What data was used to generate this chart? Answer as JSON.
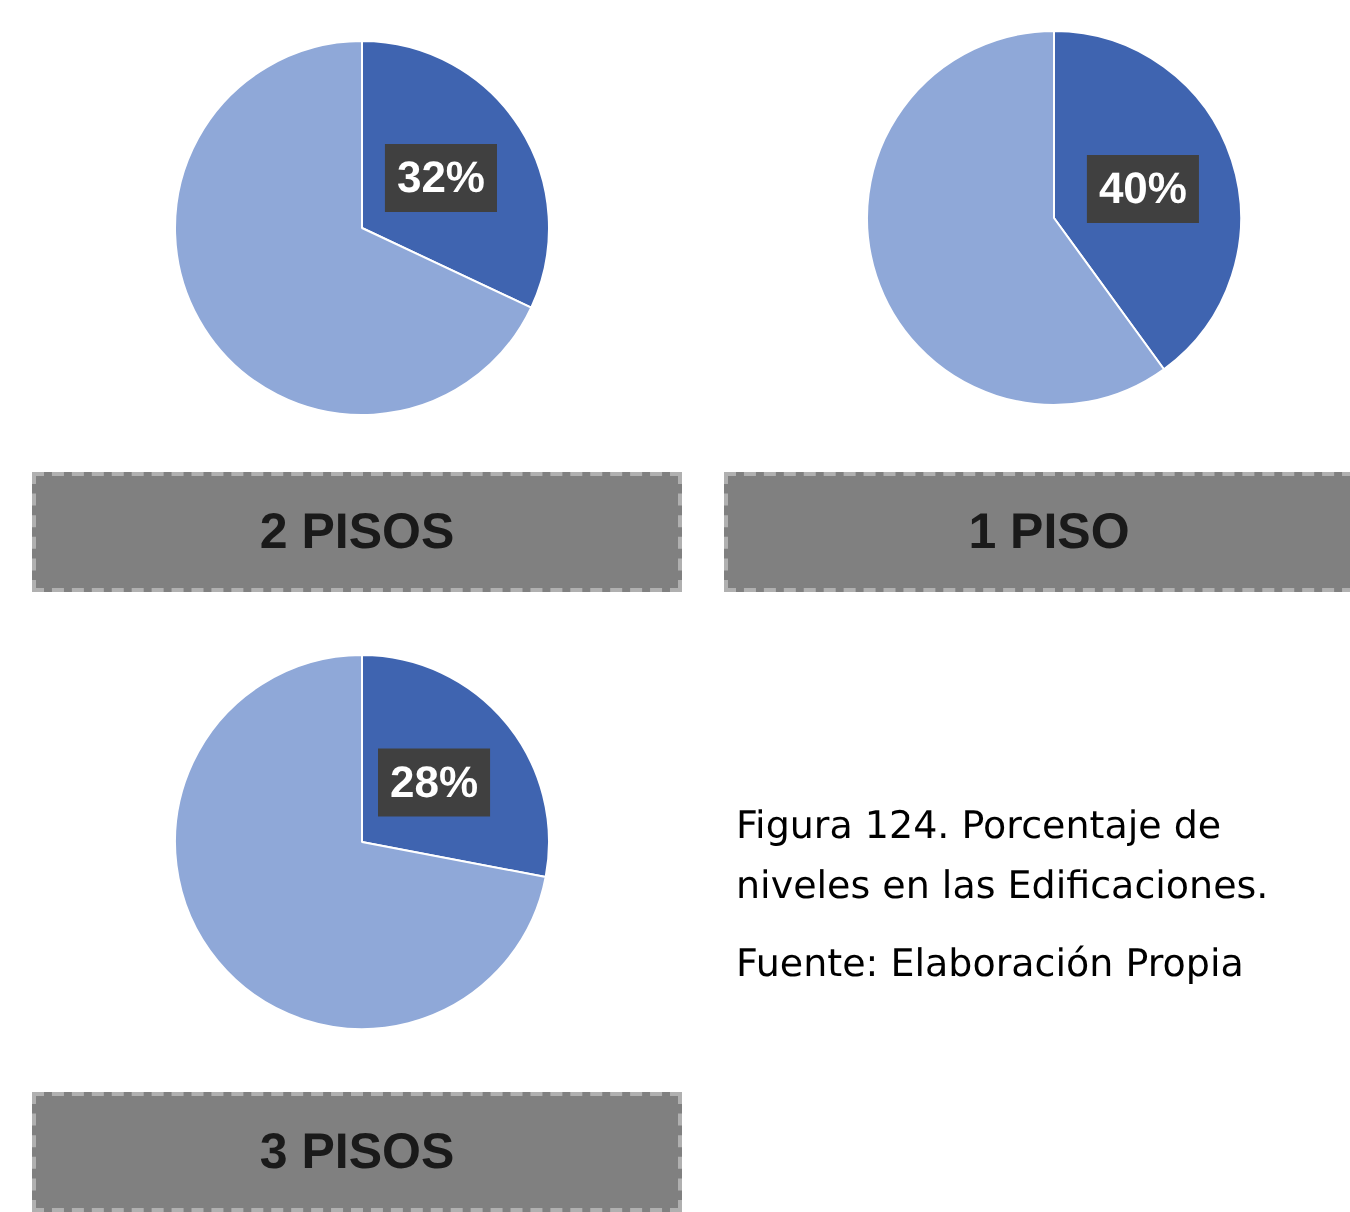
{
  "chart_data": [
    {
      "type": "pie",
      "title": "2 PISOS",
      "categories": [
        null,
        null
      ],
      "values": [
        32,
        68
      ],
      "colors": [
        "#3f64b0",
        "#8fa8d8"
      ],
      "value_labels": [
        "32%",
        null
      ],
      "legend": false
    },
    {
      "type": "pie",
      "title": "1 PISO",
      "categories": [
        null,
        null
      ],
      "values": [
        40,
        60
      ],
      "colors": [
        "#3f64b0",
        "#8fa8d8"
      ],
      "value_labels": [
        "40%",
        null
      ],
      "legend": false
    },
    {
      "type": "pie",
      "title": "3 PISOS",
      "categories": [
        null,
        null
      ],
      "values": [
        28,
        72
      ],
      "colors": [
        "#3f64b0",
        "#8fa8d8"
      ],
      "value_labels": [
        "28%",
        null
      ],
      "legend": false,
      "annotations": [
        "Figura 124. Porcentaje de niveles en las Edificaciones.",
        "Fuente: Elaboración Propia"
      ]
    }
  ]
}
